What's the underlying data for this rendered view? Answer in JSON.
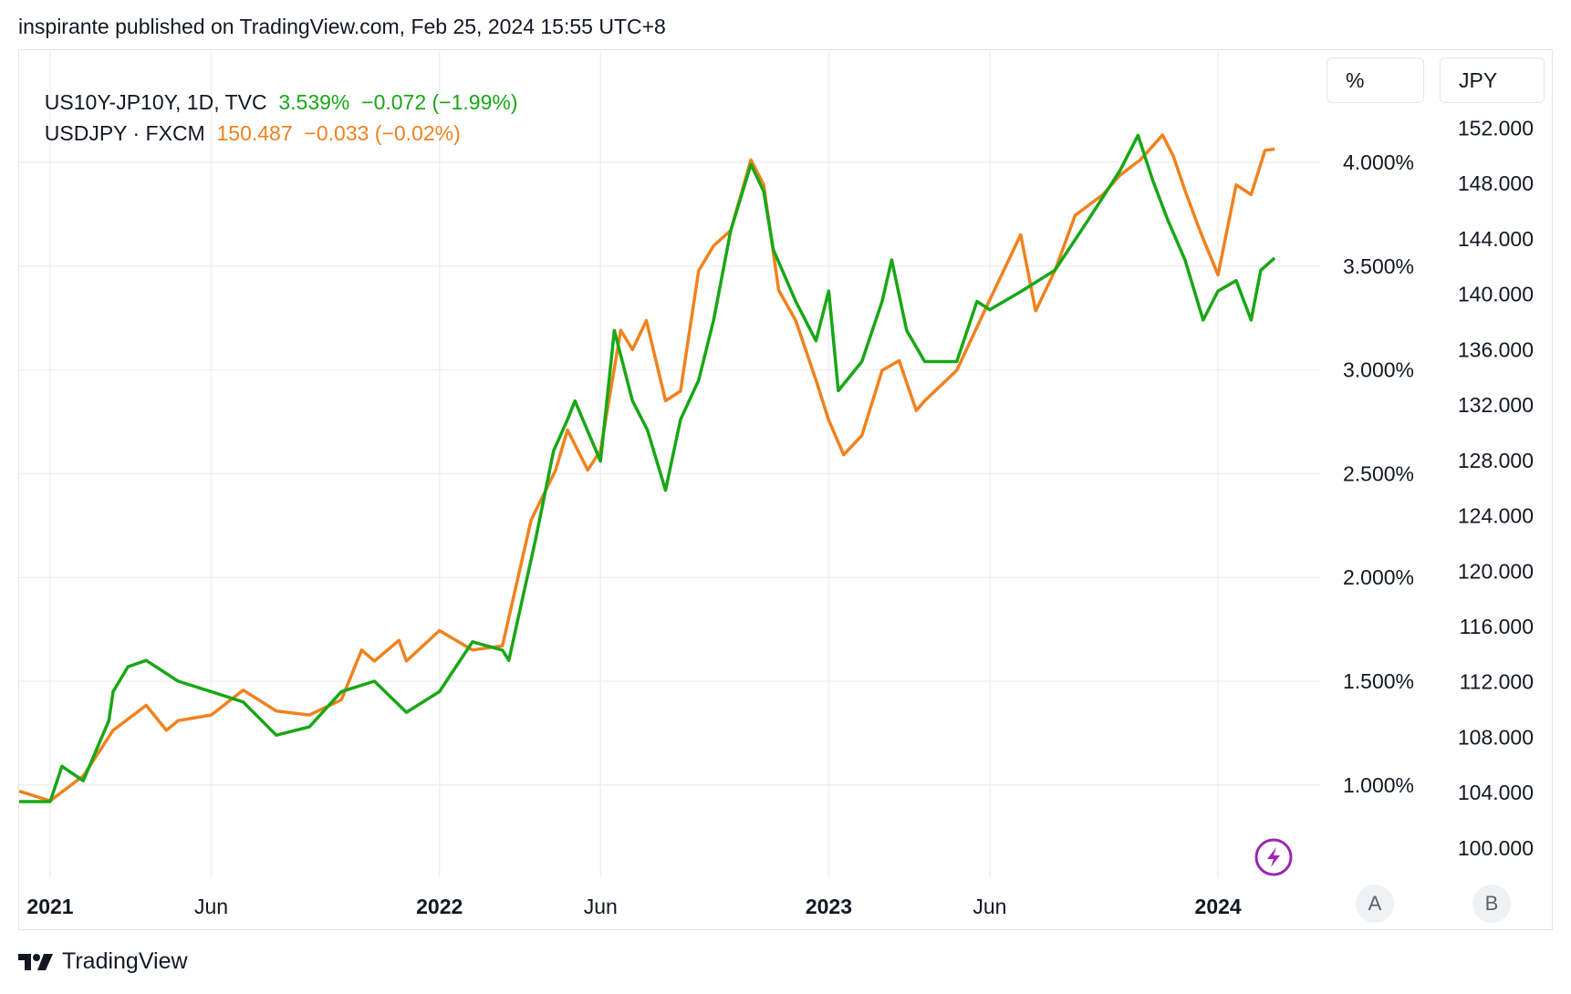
{
  "header": {
    "published": "inspirante published on TradingView.com, Feb 25, 2024 15:55 UTC+8"
  },
  "legend": [
    {
      "symbol": "US10Y-JP10Y, 1D, TVC",
      "value": "3.539%",
      "change": "−0.072 (−1.99%)",
      "color": "#18a716"
    },
    {
      "symbol": "USDJPY · FXCM",
      "value": "150.487",
      "change": "−0.033 (−0.02%)",
      "color": "#f0821e"
    }
  ],
  "scale_buttons": {
    "left": "%",
    "right": "JPY",
    "left_badge": "A",
    "right_badge": "B"
  },
  "footer": {
    "brand": "TradingView"
  },
  "icons": {
    "logo": "tradingview-logo-icon",
    "flash": "lightning-icon"
  },
  "chart_data": {
    "type": "line",
    "x_ticks": [
      {
        "date": "2021-01-01",
        "label": "2021",
        "bold": true
      },
      {
        "date": "2021-06-01",
        "label": "Jun"
      },
      {
        "date": "2022-01-01",
        "label": "2022",
        "bold": true
      },
      {
        "date": "2022-06-01",
        "label": "Jun"
      },
      {
        "date": "2023-01-01",
        "label": "2023",
        "bold": true
      },
      {
        "date": "2023-06-01",
        "label": "Jun"
      },
      {
        "date": "2024-01-01",
        "label": "2024",
        "bold": true
      }
    ],
    "left_axis": {
      "unit": "%",
      "ticks": [
        "4.000%",
        "3.500%",
        "3.000%",
        "2.500%",
        "2.000%",
        "1.500%",
        "1.000%"
      ],
      "tick_values": [
        4,
        3.5,
        3,
        2.5,
        2,
        1.5,
        1
      ]
    },
    "right_axis": {
      "unit": "JPY",
      "ticks": [
        "152.000",
        "148.000",
        "144.000",
        "140.000",
        "136.000",
        "132.000",
        "128.000",
        "124.000",
        "120.000",
        "116.000",
        "112.000",
        "108.000",
        "104.000",
        "100.000"
      ],
      "tick_values": [
        152,
        148,
        144,
        140,
        136,
        132,
        128,
        124,
        120,
        116,
        112,
        108,
        104,
        100
      ]
    },
    "grid": true,
    "series": [
      {
        "name": "US10Y-JP10Y",
        "axis": "left",
        "color": "#18a716",
        "points": [
          [
            "2020-12-01",
            0.92
          ],
          [
            "2021-01-01",
            0.92
          ],
          [
            "2021-01-12",
            1.09
          ],
          [
            "2021-02-01",
            1.02
          ],
          [
            "2021-02-25",
            1.31
          ],
          [
            "2021-03-01",
            1.45
          ],
          [
            "2021-03-15",
            1.57
          ],
          [
            "2021-04-01",
            1.6
          ],
          [
            "2021-05-01",
            1.5
          ],
          [
            "2021-06-01",
            1.45
          ],
          [
            "2021-07-01",
            1.4
          ],
          [
            "2021-08-01",
            1.24
          ],
          [
            "2021-09-01",
            1.28
          ],
          [
            "2021-10-01",
            1.45
          ],
          [
            "2021-11-01",
            1.5
          ],
          [
            "2021-12-01",
            1.35
          ],
          [
            "2022-01-01",
            1.45
          ],
          [
            "2022-02-01",
            1.69
          ],
          [
            "2022-03-01",
            1.65
          ],
          [
            "2022-03-07",
            1.6
          ],
          [
            "2022-04-01",
            2.18
          ],
          [
            "2022-04-18",
            2.61
          ],
          [
            "2022-05-01",
            2.76
          ],
          [
            "2022-05-08",
            2.85
          ],
          [
            "2022-06-01",
            2.56
          ],
          [
            "2022-06-14",
            3.19
          ],
          [
            "2022-07-01",
            2.85
          ],
          [
            "2022-07-15",
            2.71
          ],
          [
            "2022-08-01",
            2.42
          ],
          [
            "2022-08-15",
            2.76
          ],
          [
            "2022-09-01",
            2.95
          ],
          [
            "2022-09-15",
            3.24
          ],
          [
            "2022-10-01",
            3.67
          ],
          [
            "2022-10-20",
            3.99
          ],
          [
            "2022-11-01",
            3.86
          ],
          [
            "2022-11-10",
            3.58
          ],
          [
            "2022-12-01",
            3.33
          ],
          [
            "2022-12-20",
            3.14
          ],
          [
            "2023-01-01",
            3.38
          ],
          [
            "2023-01-10",
            2.9
          ],
          [
            "2023-02-01",
            3.04
          ],
          [
            "2023-02-20",
            3.33
          ],
          [
            "2023-03-01",
            3.53
          ],
          [
            "2023-03-15",
            3.19
          ],
          [
            "2023-04-01",
            3.04
          ],
          [
            "2023-05-01",
            3.04
          ],
          [
            "2023-05-20",
            3.33
          ],
          [
            "2023-06-01",
            3.29
          ],
          [
            "2023-07-01",
            3.38
          ],
          [
            "2023-08-01",
            3.48
          ],
          [
            "2023-09-01",
            3.72
          ],
          [
            "2023-10-01",
            3.96
          ],
          [
            "2023-10-18",
            4.13
          ],
          [
            "2023-11-01",
            3.91
          ],
          [
            "2023-11-15",
            3.72
          ],
          [
            "2023-12-01",
            3.53
          ],
          [
            "2023-12-18",
            3.24
          ],
          [
            "2024-01-01",
            3.38
          ],
          [
            "2024-01-18",
            3.43
          ],
          [
            "2024-02-01",
            3.24
          ],
          [
            "2024-02-10",
            3.48
          ],
          [
            "2024-02-23",
            3.539
          ]
        ]
      },
      {
        "name": "USDJPY",
        "axis": "right",
        "color": "#f0821e",
        "points": [
          [
            "2020-12-01",
            104.1
          ],
          [
            "2021-01-01",
            103.4
          ],
          [
            "2021-02-01",
            105.2
          ],
          [
            "2021-03-01",
            108.5
          ],
          [
            "2021-04-01",
            110.3
          ],
          [
            "2021-04-20",
            108.5
          ],
          [
            "2021-05-01",
            109.2
          ],
          [
            "2021-06-01",
            109.6
          ],
          [
            "2021-07-01",
            111.4
          ],
          [
            "2021-08-01",
            109.9
          ],
          [
            "2021-09-01",
            109.6
          ],
          [
            "2021-10-01",
            110.7
          ],
          [
            "2021-10-20",
            114.3
          ],
          [
            "2021-11-01",
            113.5
          ],
          [
            "2021-11-24",
            115.0
          ],
          [
            "2021-12-01",
            113.5
          ],
          [
            "2022-01-01",
            115.7
          ],
          [
            "2022-02-01",
            114.3
          ],
          [
            "2022-03-01",
            114.6
          ],
          [
            "2022-03-28",
            123.7
          ],
          [
            "2022-04-20",
            127.3
          ],
          [
            "2022-05-01",
            130.2
          ],
          [
            "2022-05-20",
            127.3
          ],
          [
            "2022-06-01",
            128.7
          ],
          [
            "2022-06-20",
            137.4
          ],
          [
            "2022-07-01",
            136.0
          ],
          [
            "2022-07-14",
            138.1
          ],
          [
            "2022-08-01",
            132.3
          ],
          [
            "2022-08-15",
            133.0
          ],
          [
            "2022-09-01",
            141.7
          ],
          [
            "2022-09-15",
            143.5
          ],
          [
            "2022-10-01",
            144.6
          ],
          [
            "2022-10-20",
            149.7
          ],
          [
            "2022-11-01",
            147.9
          ],
          [
            "2022-11-15",
            140.3
          ],
          [
            "2022-12-01",
            138.1
          ],
          [
            "2022-12-20",
            133.8
          ],
          [
            "2023-01-01",
            130.9
          ],
          [
            "2023-01-15",
            128.4
          ],
          [
            "2023-02-01",
            129.8
          ],
          [
            "2023-02-20",
            134.5
          ],
          [
            "2023-03-08",
            135.2
          ],
          [
            "2023-03-24",
            131.6
          ],
          [
            "2023-04-01",
            132.3
          ],
          [
            "2023-05-01",
            134.5
          ],
          [
            "2023-06-01",
            139.6
          ],
          [
            "2023-06-30",
            144.3
          ],
          [
            "2023-07-14",
            138.8
          ],
          [
            "2023-08-01",
            141.7
          ],
          [
            "2023-08-20",
            145.7
          ],
          [
            "2023-09-15",
            147.2
          ],
          [
            "2023-10-01",
            148.6
          ],
          [
            "2023-10-20",
            149.7
          ],
          [
            "2023-11-10",
            151.5
          ],
          [
            "2023-11-20",
            150.0
          ],
          [
            "2023-12-01",
            147.5
          ],
          [
            "2023-12-15",
            144.6
          ],
          [
            "2024-01-01",
            141.4
          ],
          [
            "2024-01-18",
            147.9
          ],
          [
            "2024-02-01",
            147.2
          ],
          [
            "2024-02-14",
            150.4
          ],
          [
            "2024-02-23",
            150.487
          ]
        ]
      }
    ]
  }
}
